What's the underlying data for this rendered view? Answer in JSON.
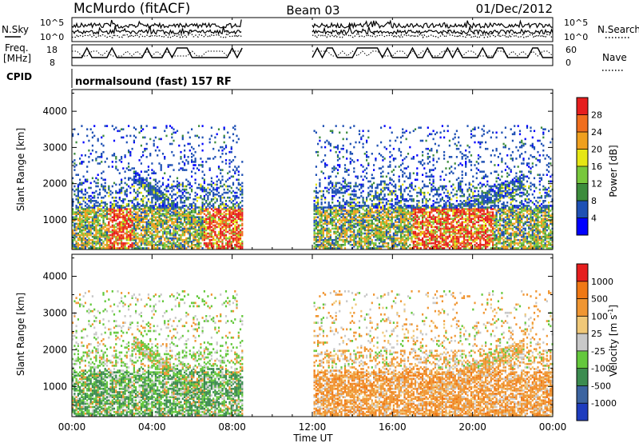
{
  "header": {
    "station": "McMurdo (fitACF)",
    "beam": "Beam 03",
    "date": "01/Dec/2012"
  },
  "panels": {
    "nsky": {
      "label": "N.Sky",
      "ticks": [
        "10^5",
        "10^0"
      ]
    },
    "nsearch": {
      "label": "N.Search",
      "ticks": [
        "10^5",
        "10^0"
      ]
    },
    "freq": {
      "label_line1": "Freq.",
      "label_line2": "[MHz]",
      "ticks": [
        "18",
        "8"
      ]
    },
    "nave": {
      "label": "Nave",
      "ticks": [
        "60",
        "0"
      ]
    },
    "cpid": {
      "label": "CPID",
      "value": "normalsound (fast) 157 RF"
    }
  },
  "chart_data": [
    {
      "type": "heatmap",
      "ylabel": "Slant Range [km]",
      "ylim": [
        180,
        4600
      ],
      "y_ticks": [
        "1000",
        "2000",
        "3000",
        "4000"
      ],
      "xlim": [
        "00:00",
        "24:00"
      ],
      "data_gaps_UT": [
        [
          "08:30",
          "12:00"
        ]
      ],
      "colorbar": {
        "label": "Power [dB]",
        "ticks": [
          "4",
          "8",
          "12",
          "16",
          "20",
          "24",
          "28"
        ],
        "colors": [
          "#0000ff",
          "#1e50b4",
          "#3c8c3c",
          "#78c83c",
          "#e6e614",
          "#f0a01e",
          "#f06e1e",
          "#e61e1e"
        ]
      }
    },
    {
      "type": "heatmap",
      "ylabel": "Slant Range [km]",
      "ylim": [
        180,
        4600
      ],
      "y_ticks": [
        "1000",
        "2000",
        "3000",
        "4000"
      ],
      "xlim": [
        "00:00",
        "24:00"
      ],
      "data_gaps_UT": [
        [
          "08:30",
          "12:00"
        ]
      ],
      "colorbar": {
        "label_main": "Velocity [m s",
        "label_exp": "-1",
        "label_end": "]",
        "ticks": [
          "1000",
          "500",
          "100",
          "25",
          "-25",
          "-100",
          "-500",
          "-1000"
        ],
        "colors": [
          "#1e3cbe",
          "#3c64a0",
          "#3c8c50",
          "#64c83c",
          "#c8c8c8",
          "#f0c878",
          "#f09632",
          "#f07814",
          "#e61e1e"
        ]
      }
    }
  ],
  "xaxis": {
    "ticks": [
      "00:00",
      "04:00",
      "08:00",
      "12:00",
      "16:00",
      "20:00",
      "00:00"
    ],
    "label": "Time UT"
  }
}
